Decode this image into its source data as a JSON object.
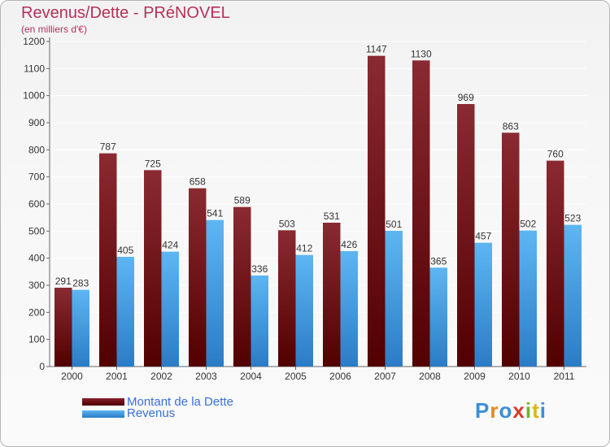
{
  "title": "Revenus/Dette - PRéNOVEL",
  "subtitle": "(en milliers d'€)",
  "logo": "Proxiti",
  "colors": {
    "dette": "#7a1a24",
    "revenus": "#4aa3e8",
    "title": "#b5305a"
  },
  "chart_data": {
    "type": "bar",
    "title": "Revenus/Dette - PRéNOVEL",
    "ylabel": "(en milliers d'€)",
    "xlabel": "",
    "categories": [
      "2000",
      "2001",
      "2002",
      "2003",
      "2004",
      "2005",
      "2006",
      "2007",
      "2008",
      "2009",
      "2010",
      "2011"
    ],
    "series": [
      {
        "name": "Montant de la Dette",
        "values": [
          291,
          787,
          725,
          658,
          589,
          503,
          531,
          1147,
          1130,
          969,
          863,
          760
        ]
      },
      {
        "name": "Revenus",
        "values": [
          283,
          405,
          424,
          541,
          336,
          412,
          426,
          501,
          365,
          457,
          502,
          523
        ]
      }
    ],
    "ylim": [
      0,
      1200
    ],
    "yticks": [
      0,
      100,
      200,
      300,
      400,
      500,
      600,
      700,
      800,
      900,
      1000,
      1100,
      1200
    ],
    "grid": true,
    "legend": "bottom-left"
  }
}
